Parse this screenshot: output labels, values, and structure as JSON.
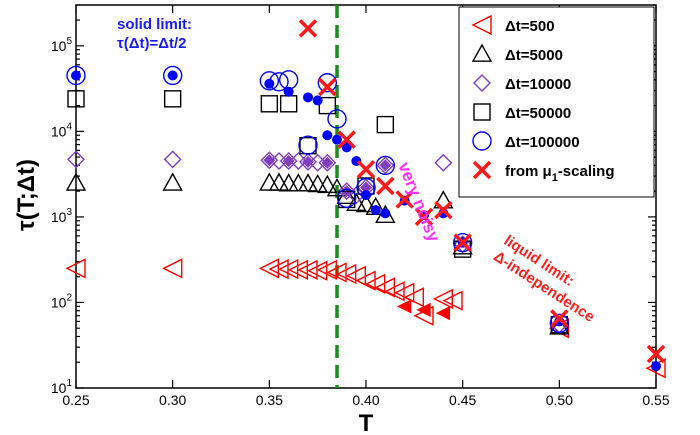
{
  "chart_data": {
    "type": "scatter",
    "xlabel": "T",
    "ylabel": "τ(T;Δt)",
    "xlim": [
      0.25,
      0.55
    ],
    "ylim": [
      10,
      300000
    ],
    "yscale": "log",
    "x_ticks": [
      "0.25",
      "0.30",
      "0.35",
      "0.40",
      "0.45",
      "0.50",
      "0.55"
    ],
    "y_ticks": [
      {
        "base": "10",
        "exp": "1"
      },
      {
        "base": "10",
        "exp": "2"
      },
      {
        "base": "10",
        "exp": "3"
      },
      {
        "base": "10",
        "exp": "4"
      },
      {
        "base": "10",
        "exp": "5"
      }
    ],
    "legend_position": "top-right",
    "series": [
      {
        "name": "Δt=500",
        "marker": "triangle-left-open",
        "color": "#ff0000",
        "points": [
          [
            0.25,
            250
          ],
          [
            0.3,
            250
          ],
          [
            0.35,
            250
          ],
          [
            0.355,
            245
          ],
          [
            0.36,
            245
          ],
          [
            0.365,
            240
          ],
          [
            0.37,
            240
          ],
          [
            0.375,
            235
          ],
          [
            0.38,
            240
          ],
          [
            0.385,
            225
          ],
          [
            0.39,
            215
          ],
          [
            0.395,
            205
          ],
          [
            0.4,
            180
          ],
          [
            0.405,
            165
          ],
          [
            0.41,
            150
          ],
          [
            0.415,
            135
          ],
          [
            0.42,
            130
          ],
          [
            0.425,
            115
          ],
          [
            0.43,
            70
          ],
          [
            0.44,
            110
          ],
          [
            0.445,
            105
          ],
          [
            0.5,
            50
          ],
          [
            0.55,
            17
          ]
        ]
      },
      {
        "name": "Δt=5000",
        "marker": "triangle-up-open",
        "color": "#000000",
        "points": [
          [
            0.25,
            2500
          ],
          [
            0.3,
            2500
          ],
          [
            0.35,
            2500
          ],
          [
            0.355,
            2500
          ],
          [
            0.36,
            2450
          ],
          [
            0.365,
            2450
          ],
          [
            0.37,
            2450
          ],
          [
            0.375,
            2400
          ],
          [
            0.38,
            2350
          ],
          [
            0.385,
            2150
          ],
          [
            0.39,
            1750
          ],
          [
            0.395,
            1450
          ],
          [
            0.4,
            1400
          ],
          [
            0.405,
            1300
          ],
          [
            0.41,
            1050
          ],
          [
            0.44,
            1550
          ],
          [
            0.45,
            450
          ],
          [
            0.5,
            52
          ]
        ]
      },
      {
        "name": "Δt=10000",
        "marker": "diamond-open",
        "color": "#7f3fbf",
        "points": [
          [
            0.25,
            4700
          ],
          [
            0.3,
            4700
          ],
          [
            0.35,
            4600
          ],
          [
            0.355,
            4500
          ],
          [
            0.36,
            4500
          ],
          [
            0.365,
            4500
          ],
          [
            0.37,
            4400
          ],
          [
            0.375,
            4300
          ],
          [
            0.38,
            4300
          ],
          [
            0.39,
            2000
          ],
          [
            0.395,
            1800
          ],
          [
            0.4,
            2200
          ],
          [
            0.41,
            4000
          ],
          [
            0.44,
            4300
          ],
          [
            0.45,
            480
          ],
          [
            0.5,
            55
          ]
        ]
      },
      {
        "name": "Δt=50000",
        "marker": "square-open",
        "color": "#000000",
        "points": [
          [
            0.25,
            24000
          ],
          [
            0.3,
            24000
          ],
          [
            0.35,
            21000
          ],
          [
            0.36,
            21000
          ],
          [
            0.37,
            6800
          ],
          [
            0.38,
            20000
          ],
          [
            0.39,
            1600
          ],
          [
            0.4,
            2300
          ],
          [
            0.41,
            12000
          ],
          [
            0.45,
            420
          ],
          [
            0.5,
            55
          ]
        ]
      },
      {
        "name": "Δt=100000",
        "marker": "circle-open",
        "color": "#0000ff",
        "points": [
          [
            0.25,
            45000
          ],
          [
            0.3,
            45000
          ],
          [
            0.35,
            39000
          ],
          [
            0.355,
            38000
          ],
          [
            0.36,
            40000
          ],
          [
            0.37,
            6900
          ],
          [
            0.38,
            37000
          ],
          [
            0.385,
            14000
          ],
          [
            0.39,
            1650
          ],
          [
            0.4,
            2200
          ],
          [
            0.41,
            4000
          ],
          [
            0.45,
            500
          ],
          [
            0.5,
            57
          ]
        ]
      },
      {
        "name": "from μ1-scaling",
        "marker": "x",
        "color": "#ff1a1a",
        "points": [
          [
            0.37,
            160000
          ],
          [
            0.38,
            33000
          ],
          [
            0.39,
            8000
          ],
          [
            0.4,
            3600
          ],
          [
            0.41,
            2300
          ],
          [
            0.42,
            1600
          ],
          [
            0.43,
            1000
          ],
          [
            0.44,
            1200
          ],
          [
            0.45,
            500
          ],
          [
            0.5,
            65
          ],
          [
            0.55,
            25
          ]
        ]
      },
      {
        "marker": "filled-circle",
        "color": "#0000ff",
        "points": [
          [
            0.25,
            45000
          ],
          [
            0.3,
            45000
          ],
          [
            0.35,
            36000
          ],
          [
            0.36,
            29000
          ],
          [
            0.37,
            25000
          ],
          [
            0.375,
            23000
          ],
          [
            0.38,
            9000
          ],
          [
            0.385,
            8000
          ],
          [
            0.39,
            6500
          ],
          [
            0.395,
            4500
          ],
          [
            0.4,
            1800
          ],
          [
            0.405,
            1200
          ],
          [
            0.41,
            1100
          ],
          [
            0.42,
            1550
          ],
          [
            0.43,
            1050
          ],
          [
            0.44,
            1100
          ],
          [
            0.45,
            500
          ],
          [
            0.5,
            60
          ],
          [
            0.55,
            18
          ]
        ]
      },
      {
        "marker": "filled-triangle-left",
        "color": "#ff0000",
        "points": [
          [
            0.42,
            90
          ],
          [
            0.43,
            82
          ],
          [
            0.44,
            75
          ]
        ]
      },
      {
        "marker": "filled-diamond",
        "color": "#7f3fbf",
        "points": [
          [
            0.35,
            4600
          ],
          [
            0.36,
            4500
          ],
          [
            0.37,
            4400
          ],
          [
            0.38,
            4300
          ],
          [
            0.39,
            2000
          ],
          [
            0.4,
            2200
          ],
          [
            0.41,
            4000
          ]
        ]
      }
    ],
    "reference_line": {
      "x": 0.385,
      "color": "#1a8c1a",
      "style": "dashed"
    },
    "annotations": [
      {
        "lines": [
          "solid limit:",
          "τ(Δt)=Δt/2"
        ],
        "color": "#1a1aff"
      },
      {
        "lines": [
          "very noisy"
        ],
        "color": "#ff33ff"
      },
      {
        "lines": [
          "liquid limit:",
          "Δ-independence"
        ],
        "color": "#ff2020"
      }
    ]
  }
}
